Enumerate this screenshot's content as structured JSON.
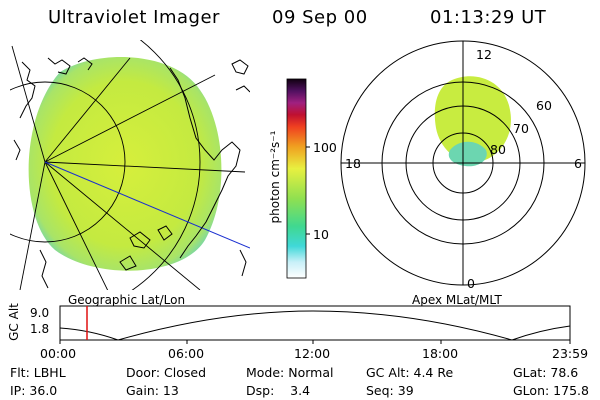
{
  "header": {
    "instrument": "Ultraviolet Imager",
    "date": "09 Sep 00",
    "time": "01:13:29 UT"
  },
  "left_panel": {
    "label": "Geographic Lat/Lon"
  },
  "right_panel": {
    "label": "Apex MLat/MLT",
    "mlt_labels": {
      "top": "12",
      "left": "18",
      "right": "6",
      "bottom": "0"
    },
    "mlat_labels": [
      "60",
      "70",
      "80"
    ]
  },
  "colorbar": {
    "unit_label": "photon cm⁻²s⁻¹",
    "ticks": [
      "100",
      "10"
    ]
  },
  "orbit": {
    "ylabel": "GC Alt",
    "yticks": [
      "9.0",
      "1.8"
    ],
    "time_labels": [
      "00:00",
      "06:00",
      "12:00",
      "18:00",
      "23:59"
    ],
    "marker_time": "01:13"
  },
  "footer": {
    "row1": [
      "Flt: LBHL",
      "Door: Closed",
      "Mode: Normal",
      "GC Alt: 4.4 Re",
      "GLat: 78.6"
    ],
    "row2": [
      "IP: 36.0",
      "Gain: 13",
      "Dsp:    3.4",
      "Seq: 39",
      "GLon: 175.8"
    ]
  },
  "colors": {
    "emission": "#c8ec40",
    "emission_edge": "#7fd49a",
    "grid": "#000000",
    "marker": "#e01010",
    "meridian": "#1a2fd0"
  }
}
